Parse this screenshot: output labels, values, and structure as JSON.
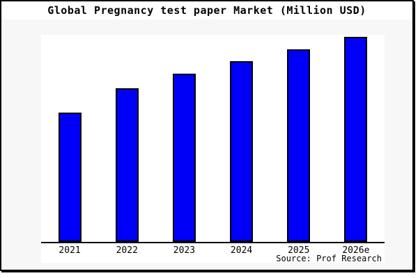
{
  "title": "Global Pregnancy test paper Market (Million USD)",
  "source": "Source: Prof Research",
  "colors": {
    "bar_fill": "#0000f8",
    "bar_border": "#000000",
    "axis_line": "#000000",
    "frame_border": "#000000",
    "frame_background": "#f7f7f7",
    "title_background": "#ffffff",
    "plot_background": "#ffffff",
    "text": "#000000"
  },
  "chart_data": {
    "type": "bar",
    "title": "Global Pregnancy test paper Market (Million USD)",
    "categories": [
      "2021",
      "2022",
      "2023",
      "2024",
      "2025",
      "2026e"
    ],
    "values": [
      63,
      75,
      82,
      88,
      94,
      100
    ],
    "values_note": "no y-axis scale, ticks or gridlines shown; values are relative bar heights normalized to 2026e = 100",
    "xlabel": "",
    "ylabel": "",
    "ylim": [
      0,
      101
    ],
    "grid": false,
    "legend": false,
    "y_axis_visible": false,
    "annotations": [
      "Source: Prof Research"
    ]
  }
}
